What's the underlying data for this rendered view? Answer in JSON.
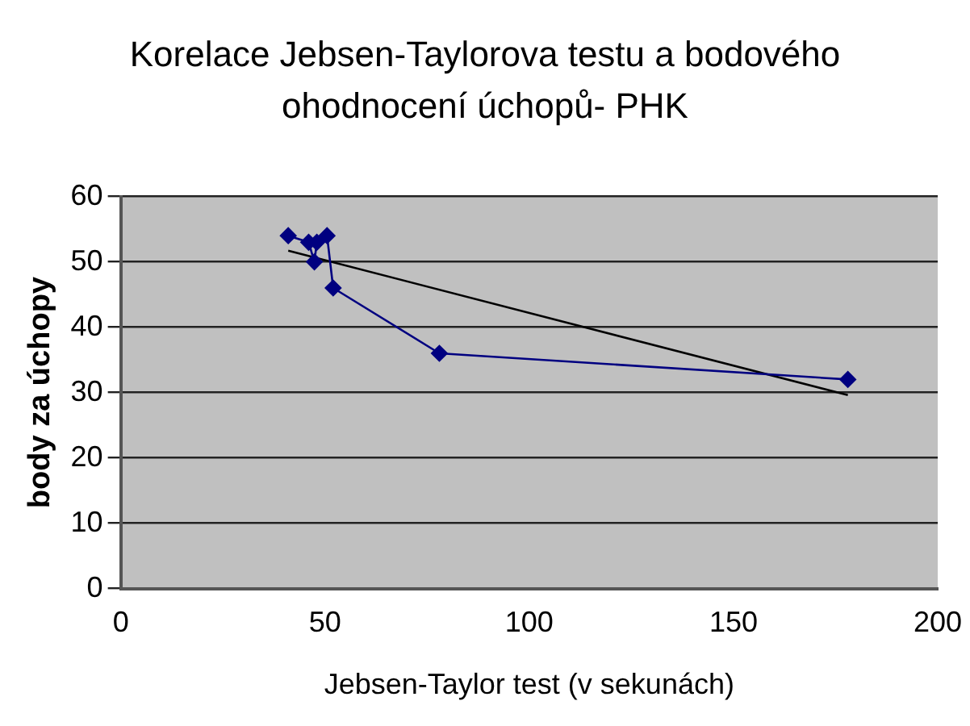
{
  "chart_data": {
    "type": "line",
    "title": "Korelace Jebsen-Taylorova testu a bodového ohodnocení úchopů- PHK",
    "xlabel": "Jebsen-Taylor test (v sekunách)",
    "ylabel": "body za úchopy",
    "series": [
      {
        "color": "#000080",
        "x": [
          41,
          46,
          47.4,
          48,
          50.5,
          52,
          78,
          178
        ],
        "values": [
          54,
          53,
          50,
          53,
          54,
          46,
          36,
          32
        ],
        "marker": "diamond"
      },
      {
        "type": "line",
        "color": "#000000",
        "x": [
          41,
          178
        ],
        "values": [
          51.7,
          29.6
        ],
        "marker": "none"
      }
    ],
    "xlim": [
      0,
      200
    ],
    "xticks": [
      0,
      50,
      100,
      150,
      200
    ],
    "ylim": [
      0,
      60
    ],
    "yticks": [
      0,
      10,
      20,
      30,
      40,
      50,
      60
    ],
    "grid": "y",
    "legend": false
  }
}
